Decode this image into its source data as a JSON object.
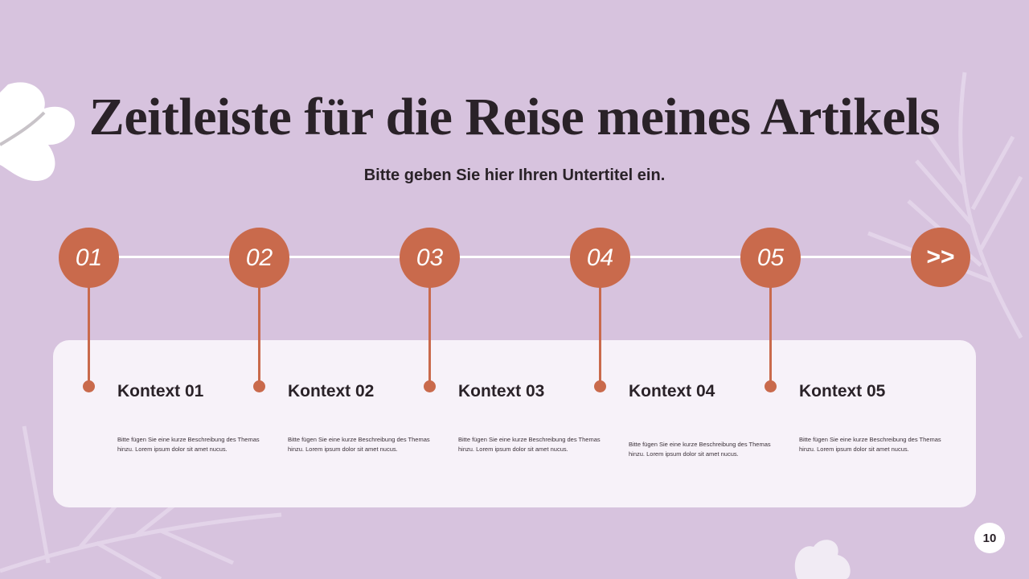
{
  "title": "Zeitleiste für die Reise meines Artikels",
  "subtitle": "Bitte geben Sie hier Ihren Untertitel ein.",
  "accent_color": "#c96a4c",
  "background_color": "#d7c3de",
  "steps": [
    {
      "number": "01",
      "heading": "Kontext 01",
      "description": "Bitte fügen Sie eine kurze Beschreibung des Themas hinzu. Lorem ipsum dolor sit amet nucus."
    },
    {
      "number": "02",
      "heading": "Kontext 02",
      "description": "Bitte fügen Sie eine kurze Beschreibung des Themas hinzu. Lorem ipsum dolor sit amet nucus."
    },
    {
      "number": "03",
      "heading": "Kontext 03",
      "description": "Bitte fügen Sie eine kurze Beschreibung des Themas hinzu. Lorem ipsum dolor sit amet nucus."
    },
    {
      "number": "04",
      "heading": "Kontext 04",
      "description": "Bitte fügen Sie eine kurze Beschreibung des Themas hinzu. Lorem ipsum dolor sit amet nucus."
    },
    {
      "number": "05",
      "heading": "Kontext 05",
      "description": "Bitte fügen Sie eine kurze Beschreibung des Themas hinzu. Lorem ipsum dolor sit amet nucus."
    }
  ],
  "next_label": ">>",
  "page_number": "10"
}
